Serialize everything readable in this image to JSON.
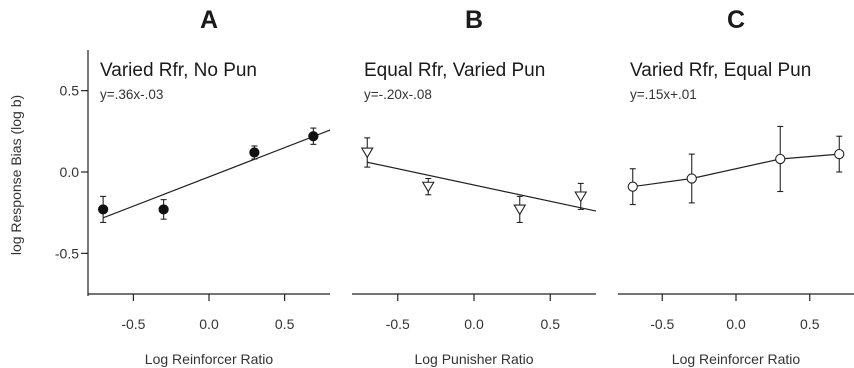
{
  "figure": {
    "ylabel": "log Response Bias (log b)",
    "ylim": [
      -0.75,
      0.75
    ],
    "xlim": [
      -0.8,
      0.8
    ],
    "yticks": [
      0.5,
      0.0,
      -0.5
    ],
    "ytick_labels": [
      "0.5",
      "0.0",
      "-0.5"
    ],
    "xticks": [
      -0.5,
      0.0,
      0.5
    ],
    "xtick_labels": [
      "-0.5",
      "0.0",
      "0.5"
    ]
  },
  "chart_data": [
    {
      "type": "scatter",
      "panel_letter": "A",
      "title": "Varied Rfr, No Pun",
      "equation": "y=.36x-.03",
      "xlabel": "Log Reinforcer Ratio",
      "ylabel": "log Response Bias (log b)",
      "xlim": [
        -0.8,
        0.8
      ],
      "ylim": [
        -0.75,
        0.75
      ],
      "marker": "filled-circle",
      "fit": {
        "slope": 0.36,
        "intercept": -0.03
      },
      "connect_points": false,
      "points": [
        {
          "x": -0.7,
          "y": -0.23,
          "err": 0.08
        },
        {
          "x": -0.3,
          "y": -0.23,
          "err": 0.06
        },
        {
          "x": 0.3,
          "y": 0.12,
          "err": 0.04
        },
        {
          "x": 0.69,
          "y": 0.22,
          "err": 0.05
        }
      ]
    },
    {
      "type": "scatter",
      "panel_letter": "B",
      "title": "Equal Rfr, Varied Pun",
      "equation": "y=-.20x-.08",
      "xlabel": "Log Punisher Ratio",
      "ylabel": "",
      "xlim": [
        -0.8,
        0.8
      ],
      "ylim": [
        -0.75,
        0.75
      ],
      "marker": "open-triangle-down",
      "fit": {
        "slope": -0.2,
        "intercept": -0.08
      },
      "connect_points": false,
      "points": [
        {
          "x": -0.7,
          "y": 0.12,
          "err": 0.09
        },
        {
          "x": -0.3,
          "y": -0.09,
          "err": 0.05
        },
        {
          "x": 0.3,
          "y": -0.23,
          "err": 0.08
        },
        {
          "x": 0.7,
          "y": -0.15,
          "err": 0.08
        }
      ]
    },
    {
      "type": "line",
      "panel_letter": "C",
      "title": "Varied Rfr, Equal Pun",
      "equation": "y=.15x+.01",
      "xlabel": "Log Reinforcer Ratio",
      "ylabel": "",
      "xlim": [
        -0.8,
        0.8
      ],
      "ylim": [
        -0.75,
        0.75
      ],
      "marker": "open-circle",
      "fit": {
        "slope": 0.15,
        "intercept": 0.01
      },
      "connect_points": true,
      "points": [
        {
          "x": -0.7,
          "y": -0.09,
          "err": 0.11
        },
        {
          "x": -0.3,
          "y": -0.04,
          "err": 0.15
        },
        {
          "x": 0.3,
          "y": 0.08,
          "err": 0.2
        },
        {
          "x": 0.7,
          "y": 0.11,
          "err": 0.11
        }
      ]
    }
  ]
}
